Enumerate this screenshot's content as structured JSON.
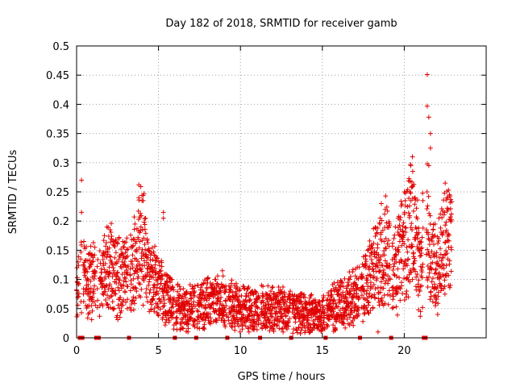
{
  "chart_data": {
    "type": "scatter",
    "title": "Day 182 of 2018, SRMTID for receiver gamb",
    "xlabel": "GPS time / hours",
    "ylabel": "SRMTID / TECUs",
    "xlim": [
      0,
      25
    ],
    "ylim": [
      0,
      0.5
    ],
    "xticks": [
      0,
      5,
      10,
      15,
      20
    ],
    "yticks": [
      0,
      0.05,
      0.1,
      0.15,
      0.2,
      0.25,
      0.3,
      0.35,
      0.4,
      0.45,
      0.5
    ],
    "grid": true,
    "marker": "+",
    "color": "#e00000",
    "zero_markers_x": [
      0.2,
      0.35,
      1.2,
      1.35,
      3.2,
      6.0,
      7.3,
      9.2,
      11.2,
      13.1,
      15.2,
      17.3,
      19.2,
      21.2,
      21.3
    ],
    "trend": [
      {
        "x": 0.0,
        "y": 0.08
      },
      {
        "x": 0.3,
        "y": 0.12
      },
      {
        "x": 0.6,
        "y": 0.09
      },
      {
        "x": 1.0,
        "y": 0.1
      },
      {
        "x": 1.5,
        "y": 0.09
      },
      {
        "x": 2.0,
        "y": 0.12
      },
      {
        "x": 2.5,
        "y": 0.11
      },
      {
        "x": 3.0,
        "y": 0.1
      },
      {
        "x": 3.5,
        "y": 0.12
      },
      {
        "x": 4.0,
        "y": 0.16
      },
      {
        "x": 4.5,
        "y": 0.1
      },
      {
        "x": 5.0,
        "y": 0.08
      },
      {
        "x": 5.5,
        "y": 0.08
      },
      {
        "x": 6.0,
        "y": 0.05
      },
      {
        "x": 7.0,
        "y": 0.05
      },
      {
        "x": 8.0,
        "y": 0.06
      },
      {
        "x": 9.0,
        "y": 0.06
      },
      {
        "x": 10.0,
        "y": 0.05
      },
      {
        "x": 11.0,
        "y": 0.05
      },
      {
        "x": 12.0,
        "y": 0.05
      },
      {
        "x": 13.0,
        "y": 0.045
      },
      {
        "x": 14.0,
        "y": 0.04
      },
      {
        "x": 15.0,
        "y": 0.04
      },
      {
        "x": 16.0,
        "y": 0.06
      },
      {
        "x": 17.0,
        "y": 0.07
      },
      {
        "x": 17.5,
        "y": 0.08
      },
      {
        "x": 18.0,
        "y": 0.11
      },
      {
        "x": 18.5,
        "y": 0.13
      },
      {
        "x": 19.0,
        "y": 0.15
      },
      {
        "x": 19.5,
        "y": 0.12
      },
      {
        "x": 20.0,
        "y": 0.16
      },
      {
        "x": 20.5,
        "y": 0.2
      },
      {
        "x": 21.0,
        "y": 0.1
      },
      {
        "x": 21.3,
        "y": 0.22
      },
      {
        "x": 21.6,
        "y": 0.14
      },
      {
        "x": 22.0,
        "y": 0.12
      },
      {
        "x": 22.5,
        "y": 0.16
      },
      {
        "x": 22.9,
        "y": 0.17
      }
    ],
    "highlights": [
      {
        "x": 0.3,
        "y": 0.27
      },
      {
        "x": 0.3,
        "y": 0.215
      },
      {
        "x": 3.8,
        "y": 0.262
      },
      {
        "x": 3.8,
        "y": 0.24
      },
      {
        "x": 5.3,
        "y": 0.215
      },
      {
        "x": 5.3,
        "y": 0.205
      },
      {
        "x": 8.9,
        "y": 0.115
      },
      {
        "x": 18.6,
        "y": 0.23
      },
      {
        "x": 20.5,
        "y": 0.31
      },
      {
        "x": 20.4,
        "y": 0.295
      },
      {
        "x": 21.4,
        "y": 0.451
      },
      {
        "x": 21.4,
        "y": 0.397
      },
      {
        "x": 21.5,
        "y": 0.378
      },
      {
        "x": 21.6,
        "y": 0.35
      },
      {
        "x": 21.6,
        "y": 0.325
      },
      {
        "x": 21.5,
        "y": 0.295
      },
      {
        "x": 22.5,
        "y": 0.265
      },
      {
        "x": 22.6,
        "y": 0.24
      },
      {
        "x": 18.4,
        "y": 0.01
      }
    ]
  }
}
